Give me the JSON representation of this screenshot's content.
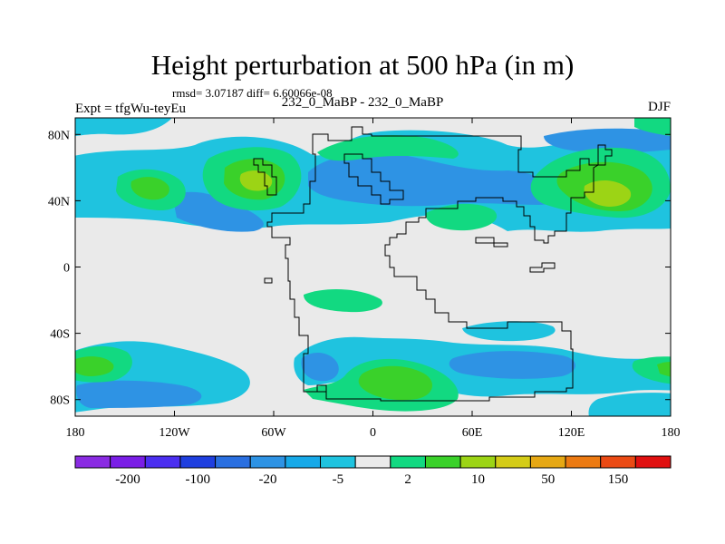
{
  "title": "Height perturbation at 500 hPa (in m)",
  "stats": {
    "rmsd_label": "rmsd=",
    "rmsd_value": "3.07187",
    "diff_label": "diff=",
    "diff_value": "6.60066e-08"
  },
  "expt_label": "Expt = tfgWu-teyEu",
  "center_label": "232_0_MaBP - 232_0_MaBP",
  "season": "DJF",
  "axes": {
    "lat_ticks": [
      "80N",
      "40N",
      "0",
      "40S",
      "80S"
    ],
    "lat_values": [
      80,
      40,
      0,
      -40,
      -80
    ],
    "lon_ticks": [
      "180",
      "120W",
      "60W",
      "0",
      "60E",
      "120E",
      "180"
    ],
    "lon_values": [
      -180,
      -120,
      -60,
      0,
      60,
      120,
      180
    ],
    "lat_range": [
      -90,
      90
    ],
    "lon_range": [
      -180,
      180
    ]
  },
  "colorbar": {
    "colors": [
      "#8a2be2",
      "#7a1ee6",
      "#4b2ff0",
      "#1f3fdf",
      "#2a6fe0",
      "#2e93e4",
      "#17a9e8",
      "#1fc3df",
      "#eaeaea",
      "#12d981",
      "#3ad12a",
      "#9cd415",
      "#d4cc18",
      "#e6a814",
      "#ec7a12",
      "#ea4a14",
      "#e01010"
    ],
    "labels": [
      "-200",
      "-100",
      "-20",
      "-5",
      "2",
      "10",
      "50",
      "150"
    ]
  },
  "colors": {
    "background": "#eaeaea",
    "neg_light": "#1fc3df",
    "neg_mid": "#17a9e8",
    "neg_strong": "#2e93e4",
    "pos_light": "#12d981",
    "pos_mid": "#3ad12a",
    "pos_strong": "#9cd415",
    "coast": "#000000"
  }
}
